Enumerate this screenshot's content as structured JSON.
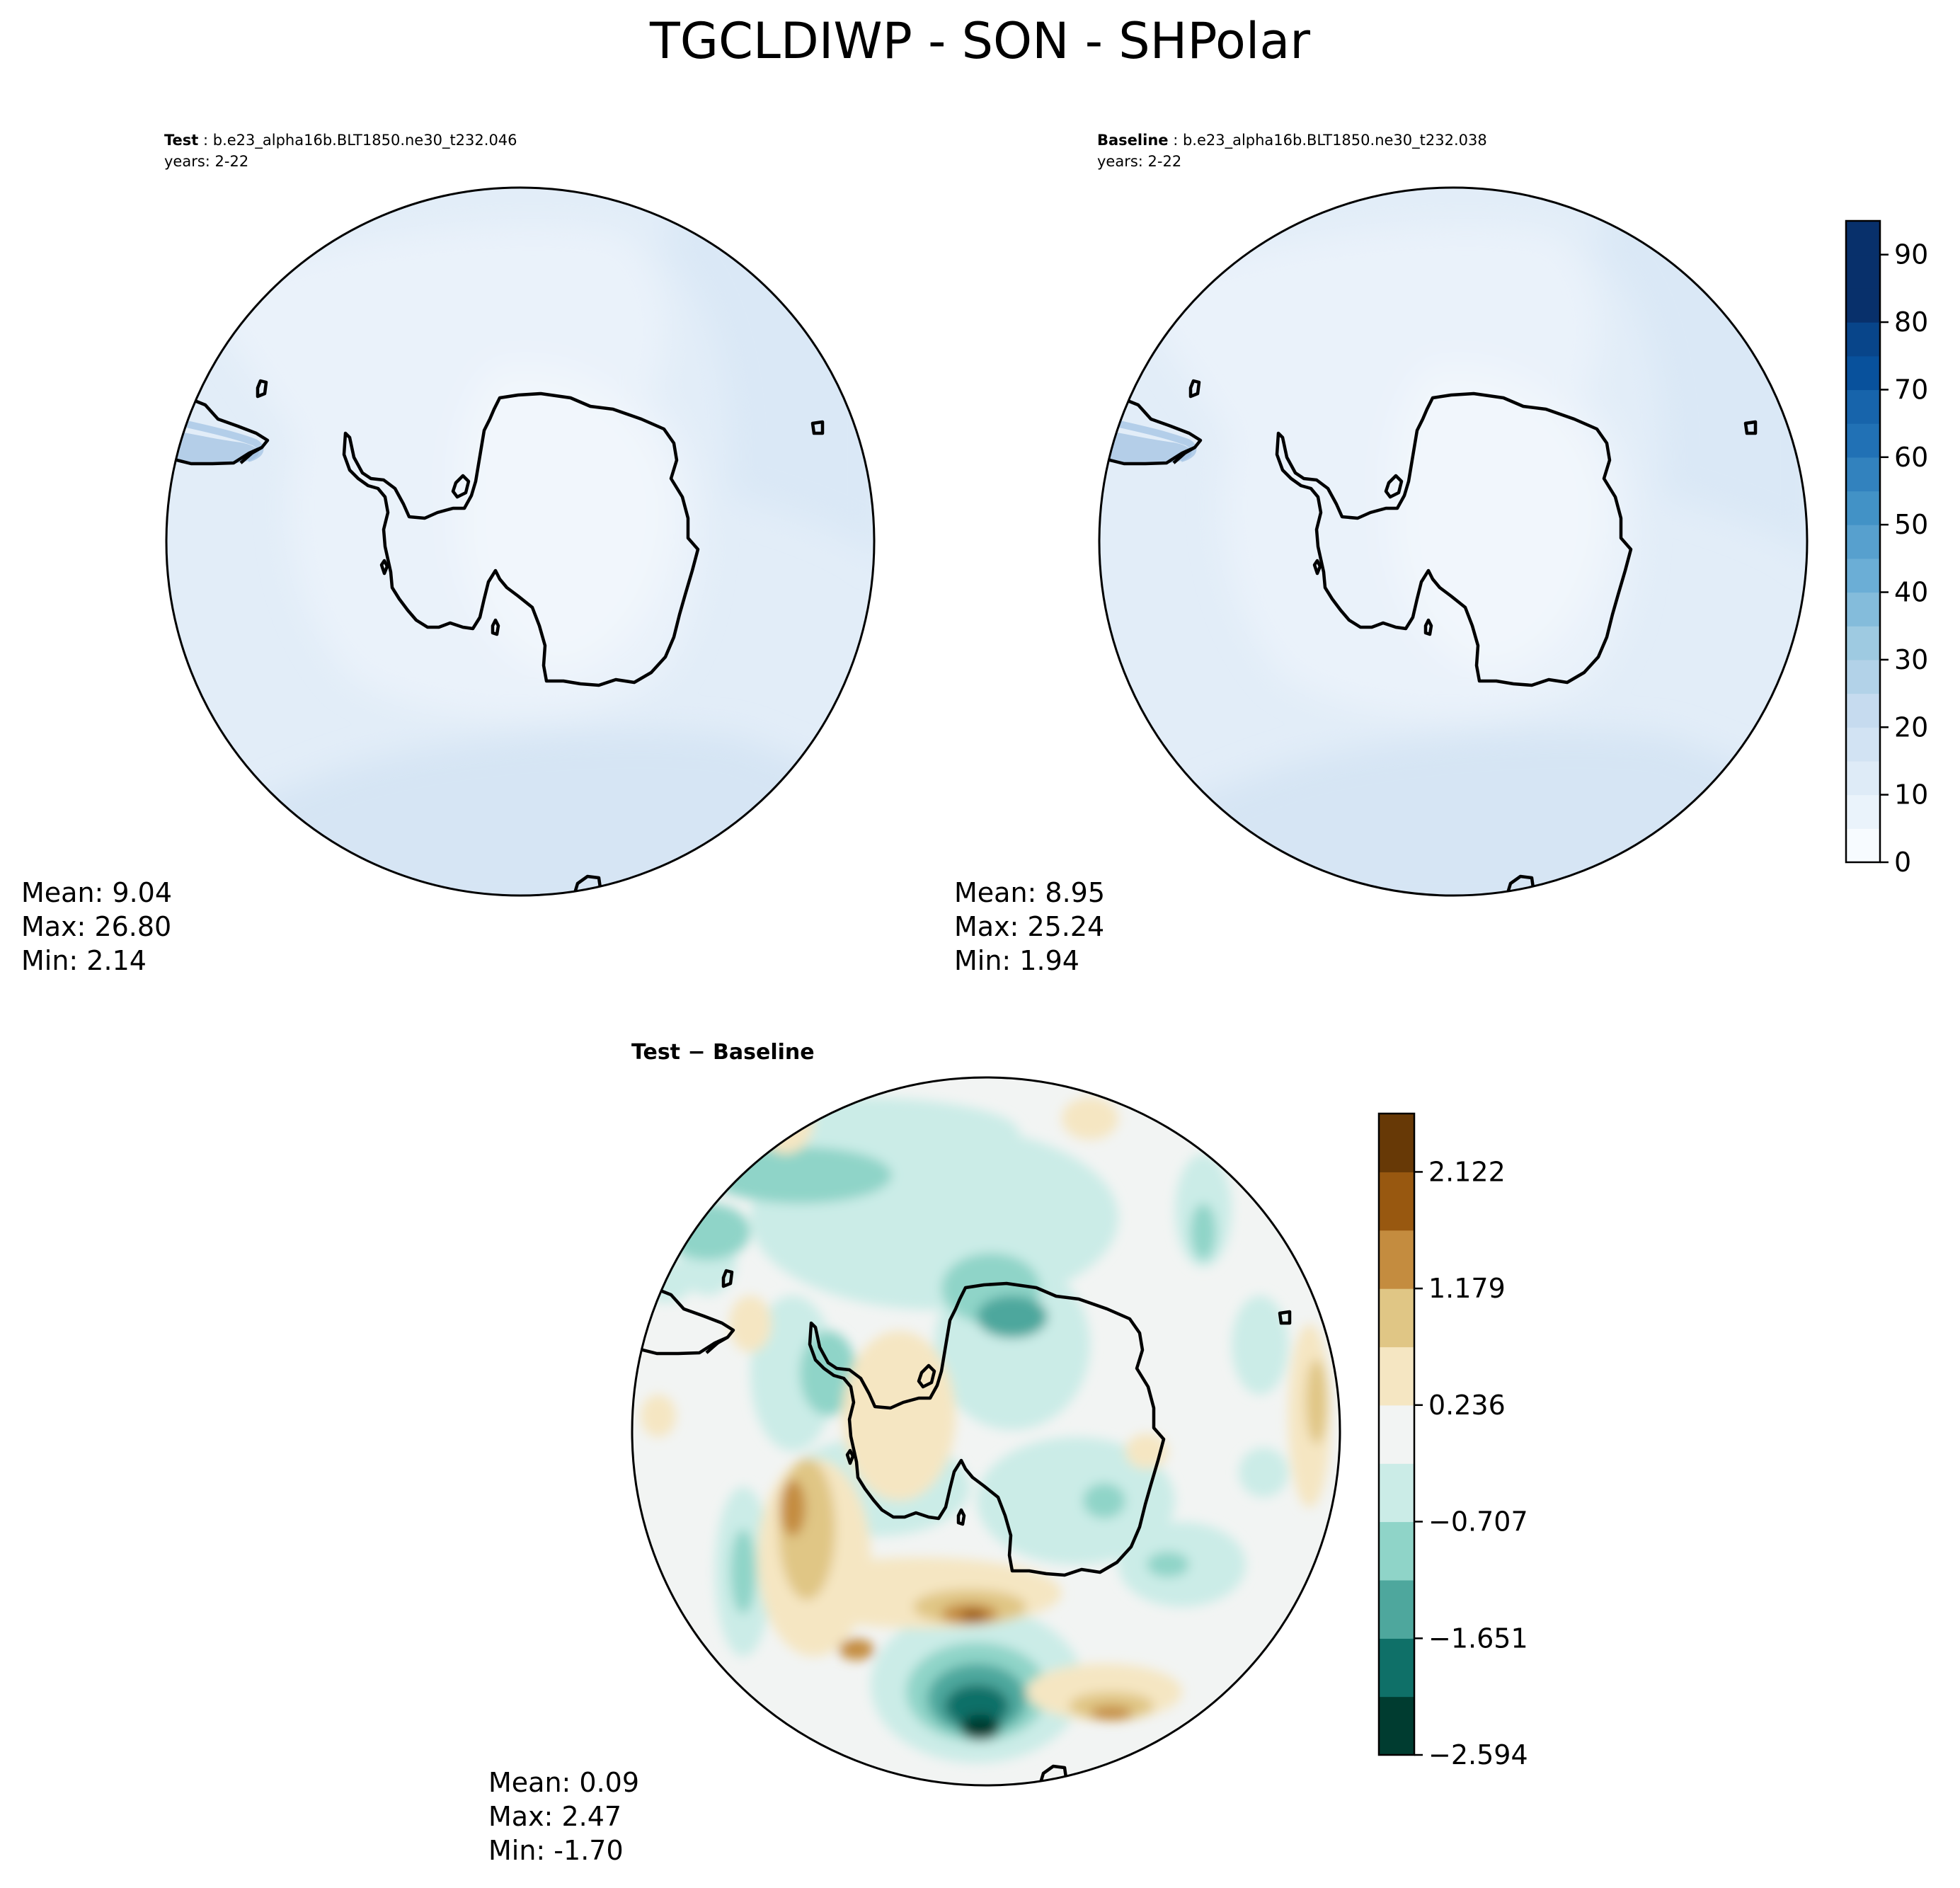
{
  "figure": {
    "title": "TGCLDIWP - SON - SHPolar"
  },
  "panels": [
    {
      "role": "test",
      "label_bold": "Test",
      "label_rest": " : b.e23_alpha16b.BLT1850.ne30_t232.046",
      "years": "years: 2-22",
      "stats": {
        "mean": "Mean:  9.04",
        "max": "Max: 26.80",
        "min": "Min:  2.14"
      }
    },
    {
      "role": "baseline",
      "label_bold": "Baseline",
      "label_rest": " : b.e23_alpha16b.BLT1850.ne30_t232.038",
      "years": "years: 2-22",
      "stats": {
        "mean": "Mean:  8.95",
        "max": "Max: 25.24",
        "min": "Min:  1.94"
      }
    },
    {
      "role": "difference",
      "label": "Test − Baseline",
      "stats": {
        "mean": "Mean:  0.09",
        "max": "Max:  2.47",
        "min": "Min: -1.70"
      }
    }
  ],
  "chart_data": [
    {
      "type": "heatmap",
      "title": "Test : b.e23_alpha16b.BLT1850.ne30_t232.046",
      "projection": "south polar stereographic",
      "summary": {
        "mean": 9.04,
        "max": 26.8,
        "min": 2.14
      },
      "levels": [
        0,
        5,
        10,
        15,
        20,
        25,
        30,
        35,
        40,
        45,
        50,
        55,
        60,
        65,
        70,
        75,
        80,
        85,
        90,
        95
      ],
      "colormap": "Blues"
    },
    {
      "type": "heatmap",
      "title": "Baseline : b.e23_alpha16b.BLT1850.ne30_t232.038",
      "projection": "south polar stereographic",
      "summary": {
        "mean": 8.95,
        "max": 25.24,
        "min": 1.94
      },
      "levels": [
        0,
        5,
        10,
        15,
        20,
        25,
        30,
        35,
        40,
        45,
        50,
        55,
        60,
        65,
        70,
        75,
        80,
        85,
        90,
        95
      ],
      "colormap": "Blues"
    },
    {
      "type": "heatmap",
      "title": "Test − Baseline",
      "projection": "south polar stereographic",
      "summary": {
        "mean": 0.09,
        "max": 2.47,
        "min": -1.7
      },
      "levels": [
        -2.594,
        -2.122,
        -1.651,
        -1.179,
        -0.707,
        -0.236,
        0.236,
        0.707,
        1.179,
        1.651,
        2.122,
        2.594
      ],
      "colormap": "BrBG"
    }
  ],
  "colorbars": {
    "abs": {
      "ticks": [
        "0",
        "10",
        "20",
        "30",
        "40",
        "50",
        "60",
        "70",
        "80",
        "90"
      ],
      "colors": [
        "#f7fbff",
        "#eaf3fb",
        "#deebf7",
        "#d2e3f3",
        "#c6dbef",
        "#b2d2e8",
        "#9ecae1",
        "#84bcdb",
        "#6baed6",
        "#57a0ce",
        "#4292c6",
        "#3282be",
        "#2171b5",
        "#1764ab",
        "#08519c",
        "#08458a",
        "#08306b"
      ]
    },
    "diff": {
      "ticks": [
        "2.122",
        "1.179",
        "0.236",
        "−0.707",
        "−1.651",
        "−2.594"
      ],
      "colors": [
        "#003c30",
        "#0f7068",
        "#4ea79d",
        "#8fd4c8",
        "#cbece7",
        "#f2f4f3",
        "#f5e6c2",
        "#e0c685",
        "#c48c3f",
        "#985810",
        "#673906"
      ]
    }
  }
}
